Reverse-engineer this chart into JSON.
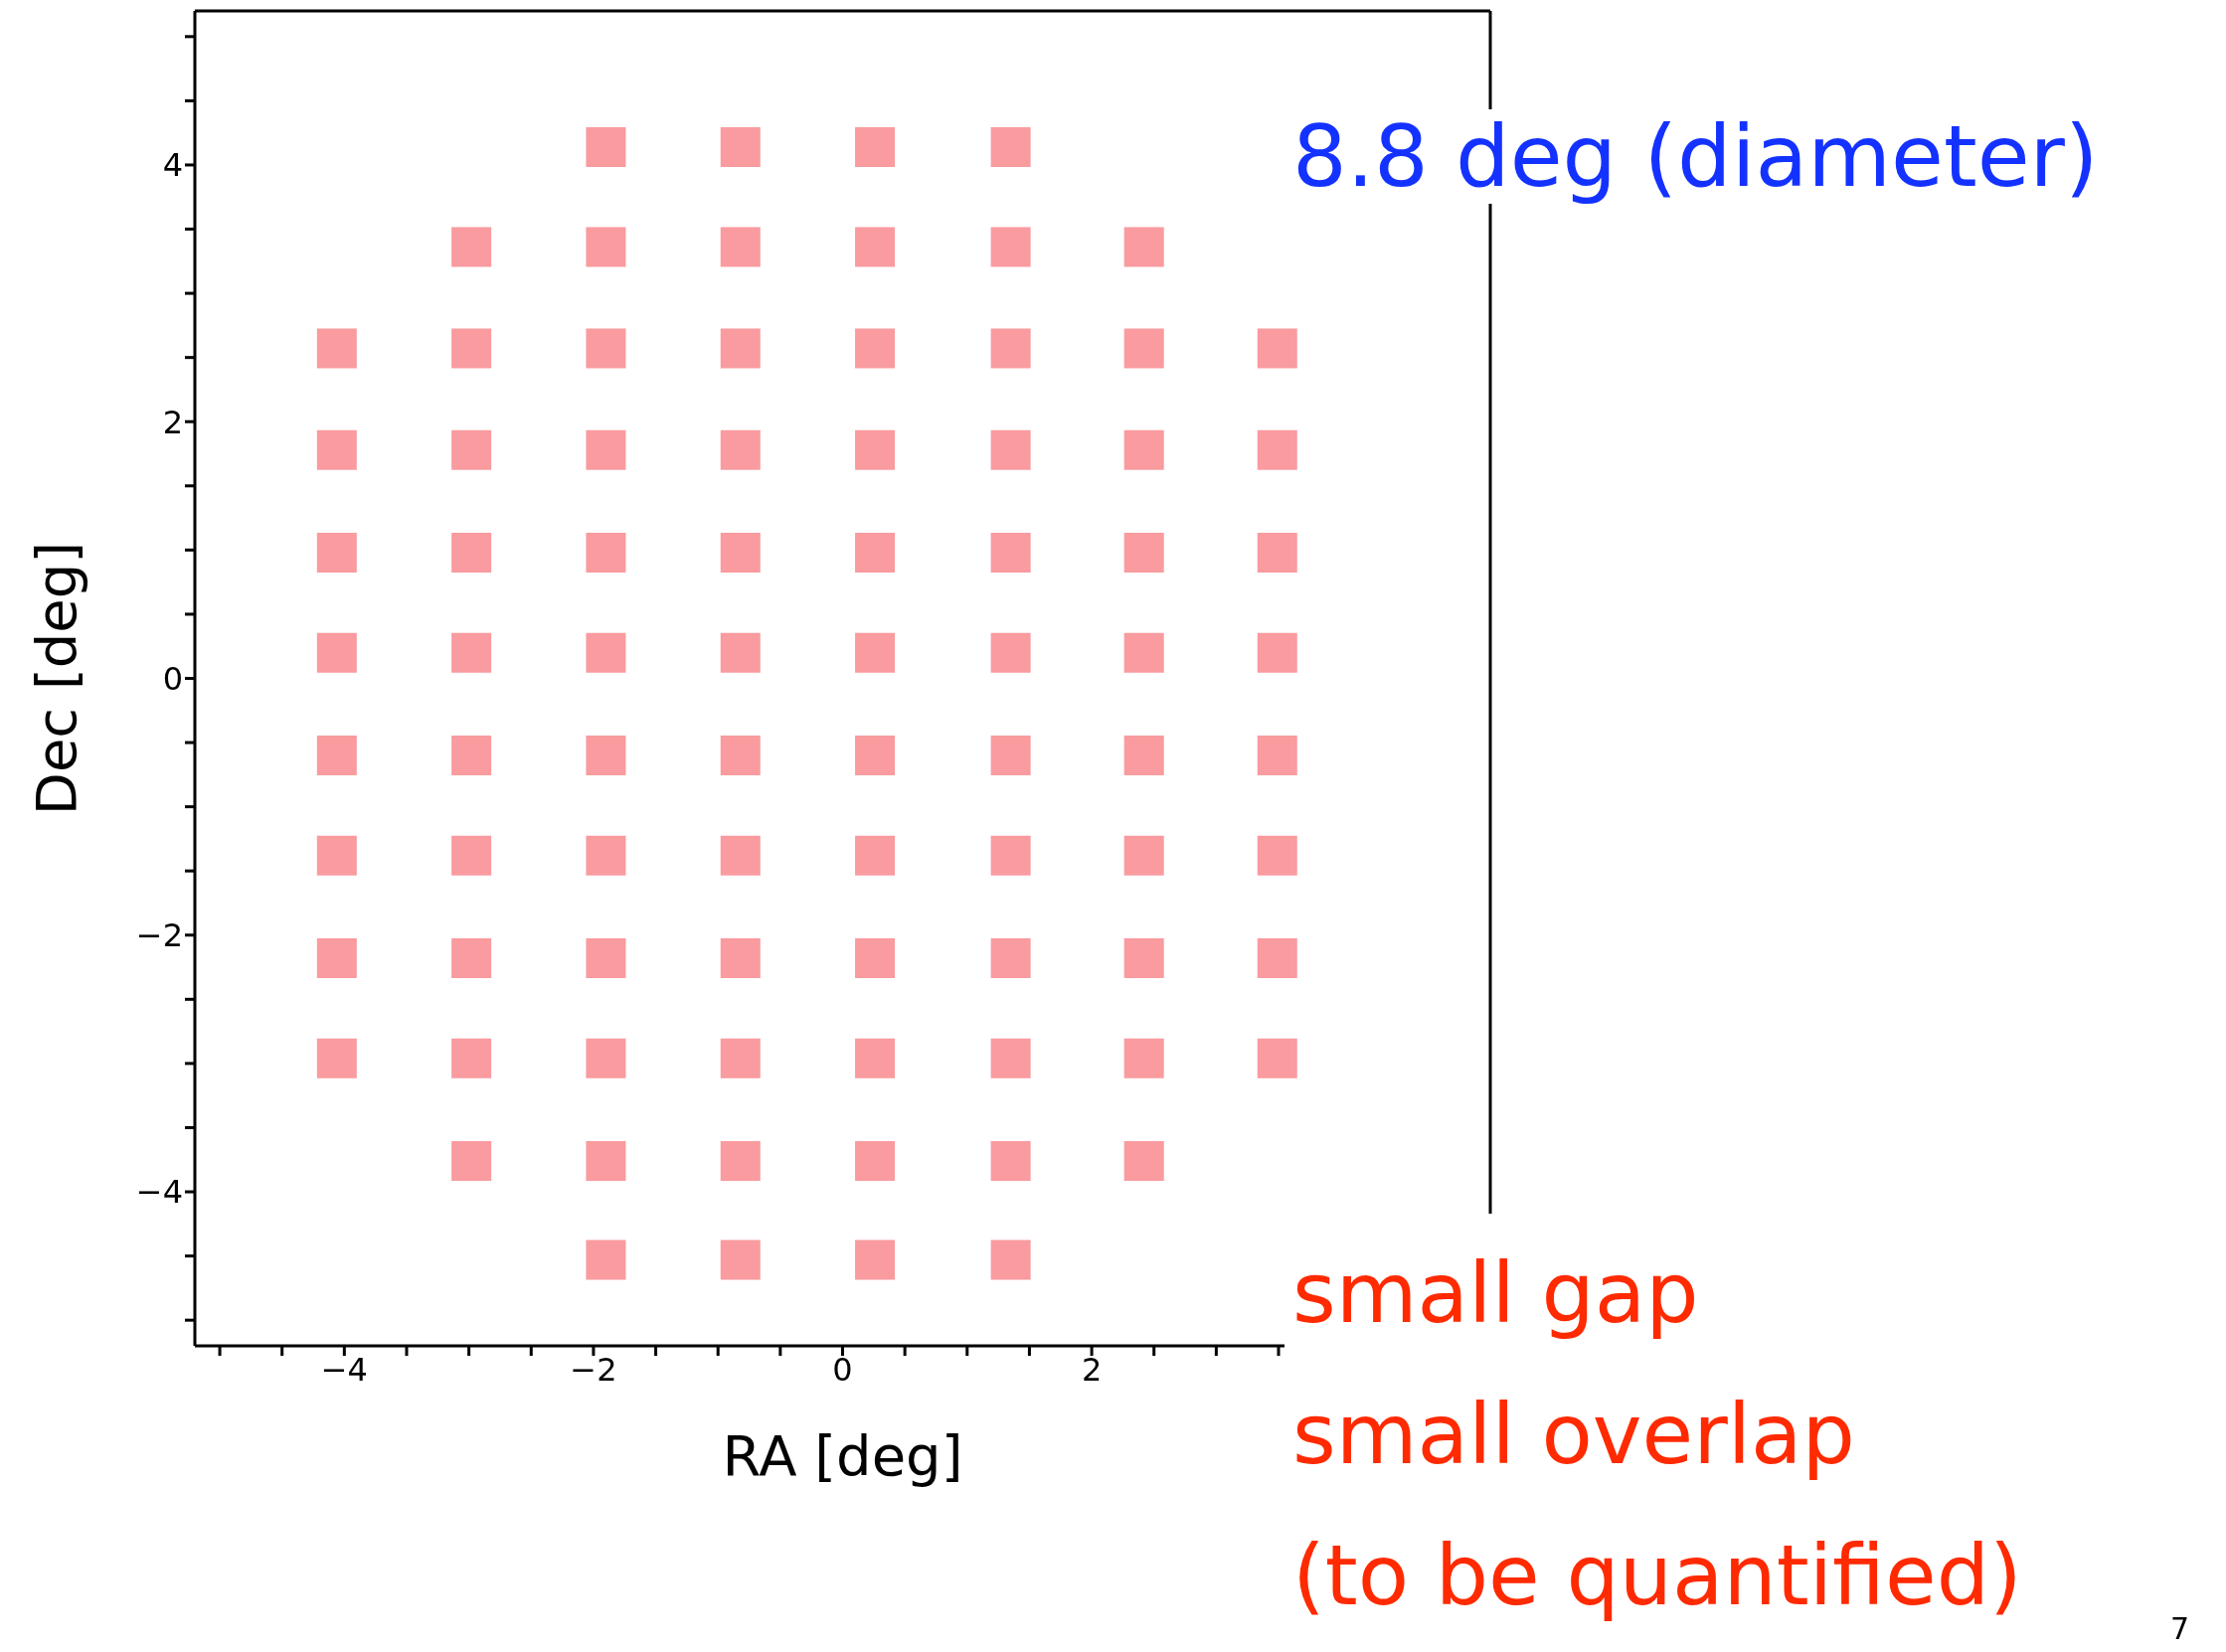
{
  "chart_data": {
    "type": "scatter",
    "xlabel": "RA [deg]",
    "ylabel": "Dec [deg]",
    "marker": "square",
    "xlim": [
      -5.2,
      5.2
    ],
    "ylim": [
      -5.2,
      5.2
    ],
    "xticks": [
      {
        "value": -5,
        "label": null
      },
      {
        "value": -4.5,
        "label": null
      },
      -4,
      {
        "value": -3.5,
        "label": null
      },
      {
        "value": -3,
        "label": null
      },
      {
        "value": -2.5,
        "label": null
      },
      -2,
      {
        "value": -1.5,
        "label": null
      },
      {
        "value": -1,
        "label": null
      },
      {
        "value": -0.5,
        "label": null
      },
      0,
      {
        "value": 0.5,
        "label": null
      },
      {
        "value": 1,
        "label": null
      },
      {
        "value": 1.5,
        "label": null
      },
      2,
      {
        "value": 2.5,
        "label": null
      },
      {
        "value": 3,
        "label": null
      },
      {
        "value": 3.5,
        "label": null
      }
    ],
    "yticks": [
      {
        "value": -5,
        "label": null
      },
      {
        "value": -4.5,
        "label": null
      },
      -4,
      {
        "value": -3.5,
        "label": null
      },
      {
        "value": -3,
        "label": null
      },
      {
        "value": -2.5,
        "label": null
      },
      -2,
      {
        "value": -1.5,
        "label": null
      },
      {
        "value": -1,
        "label": null
      },
      {
        "value": -0.5,
        "label": null
      },
      0,
      {
        "value": 0.5,
        "label": null
      },
      {
        "value": 1,
        "label": null
      },
      {
        "value": 1.5,
        "label": null
      },
      2,
      {
        "value": 2.5,
        "label": null
      },
      {
        "value": 3,
        "label": null
      },
      {
        "value": 3.5,
        "label": null
      },
      4,
      {
        "value": 4.5,
        "label": null
      },
      {
        "value": 5,
        "label": null
      }
    ],
    "series": [
      {
        "color": "#f99b9f",
        "x": [
          -1.9,
          -0.82,
          0.26,
          1.35,
          -2.98,
          -1.9,
          -0.82,
          0.26,
          1.35,
          2.42,
          -4.06,
          -2.98,
          -1.9,
          -0.82,
          0.26,
          1.35,
          2.42,
          3.49,
          -4.06,
          -2.98,
          -1.9,
          -0.82,
          0.26,
          1.35,
          2.42,
          3.49,
          -4.06,
          -2.98,
          -1.9,
          -0.82,
          0.26,
          1.35,
          2.42,
          3.49,
          -4.06,
          -2.98,
          -1.9,
          -0.82,
          0.26,
          1.35,
          2.42,
          3.49,
          -4.06,
          -2.98,
          -1.9,
          -0.82,
          0.26,
          1.35,
          2.42,
          3.49,
          -4.06,
          -2.98,
          -1.9,
          -0.82,
          0.26,
          1.35,
          2.42,
          3.49,
          -4.06,
          -2.98,
          -1.9,
          -0.82,
          0.26,
          1.35,
          2.42,
          3.49,
          -4.06,
          -2.98,
          -1.9,
          -0.82,
          0.26,
          1.35,
          2.42,
          3.49,
          -2.98,
          -1.9,
          -0.82,
          0.26,
          1.35,
          2.42,
          -1.9,
          -0.82,
          0.26,
          1.35
        ],
        "values": [
          4.14,
          4.14,
          4.14,
          4.14,
          3.36,
          3.36,
          3.36,
          3.36,
          3.36,
          3.36,
          2.57,
          2.57,
          2.57,
          2.57,
          2.57,
          2.57,
          2.57,
          2.57,
          1.78,
          1.78,
          1.78,
          1.78,
          1.78,
          1.78,
          1.78,
          1.78,
          0.98,
          0.98,
          0.98,
          0.98,
          0.98,
          0.98,
          0.98,
          0.98,
          0.2,
          0.2,
          0.2,
          0.2,
          0.2,
          0.2,
          0.2,
          0.2,
          -0.6,
          -0.6,
          -0.6,
          -0.6,
          -0.6,
          -0.6,
          -0.6,
          -0.6,
          -1.38,
          -1.38,
          -1.38,
          -1.38,
          -1.38,
          -1.38,
          -1.38,
          -1.38,
          -2.18,
          -2.18,
          -2.18,
          -2.18,
          -2.18,
          -2.18,
          -2.18,
          -2.18,
          -2.96,
          -2.96,
          -2.96,
          -2.96,
          -2.96,
          -2.96,
          -2.96,
          -2.96,
          -3.76,
          -3.76,
          -3.76,
          -3.76,
          -3.76,
          -3.76,
          -4.53,
          -4.53,
          -4.53,
          -4.53
        ]
      }
    ],
    "annotations": [
      "8.8 deg (diameter)",
      "small gap",
      "small overlap",
      "(to be quantified)",
      "7"
    ]
  }
}
